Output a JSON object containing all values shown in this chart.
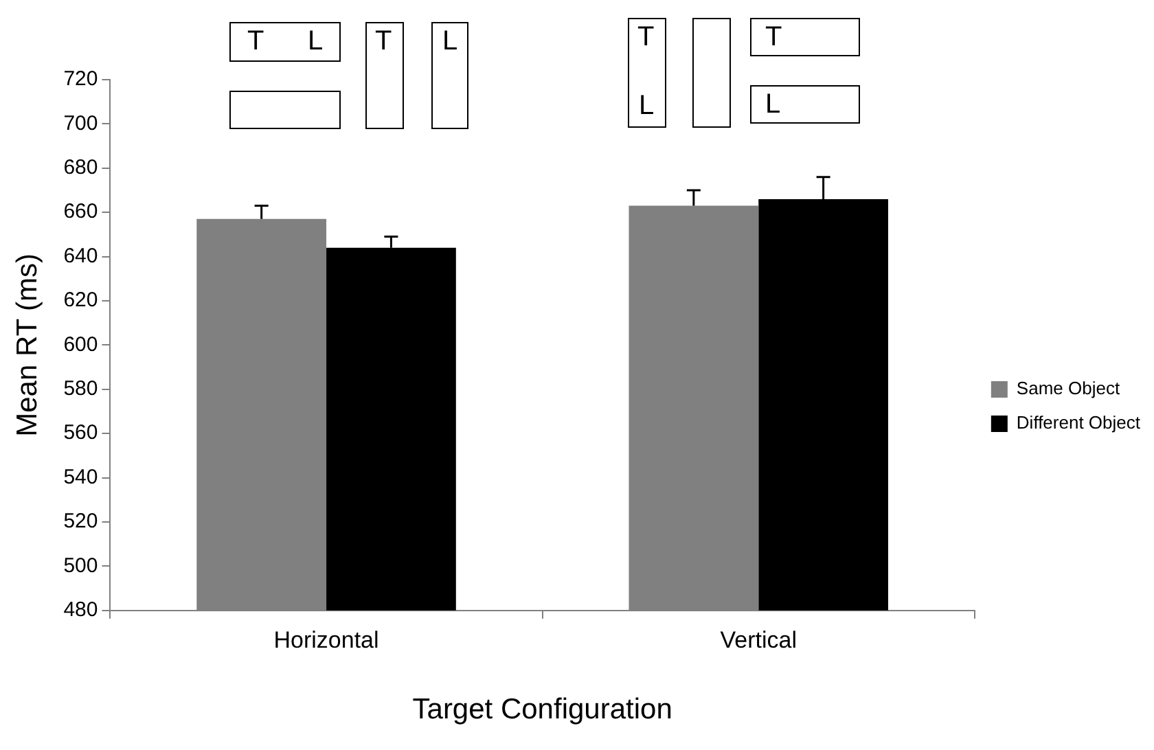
{
  "chart_data": {
    "type": "bar",
    "xlabel": "Target Configuration",
    "ylabel": "Mean RT (ms)",
    "categories": [
      "Horizontal",
      "Vertical"
    ],
    "series": [
      {
        "name": "Same Object",
        "color": "#808080",
        "values": [
          657,
          663
        ],
        "errors": [
          [
            657,
            663
          ],
          [
            663,
            670
          ]
        ]
      },
      {
        "name": "Different Object",
        "color": "#000000",
        "values": [
          644,
          666
        ],
        "errors": [
          [
            644,
            649
          ],
          [
            666,
            676
          ]
        ]
      }
    ],
    "ylim": [
      480,
      720
    ],
    "yticks": [
      480,
      500,
      520,
      540,
      560,
      580,
      600,
      620,
      640,
      660,
      680,
      700,
      720
    ],
    "grid": false,
    "legend": "right",
    "annotations": [
      "T",
      "L",
      "T",
      "L",
      "T",
      "L",
      "T",
      "L"
    ]
  }
}
